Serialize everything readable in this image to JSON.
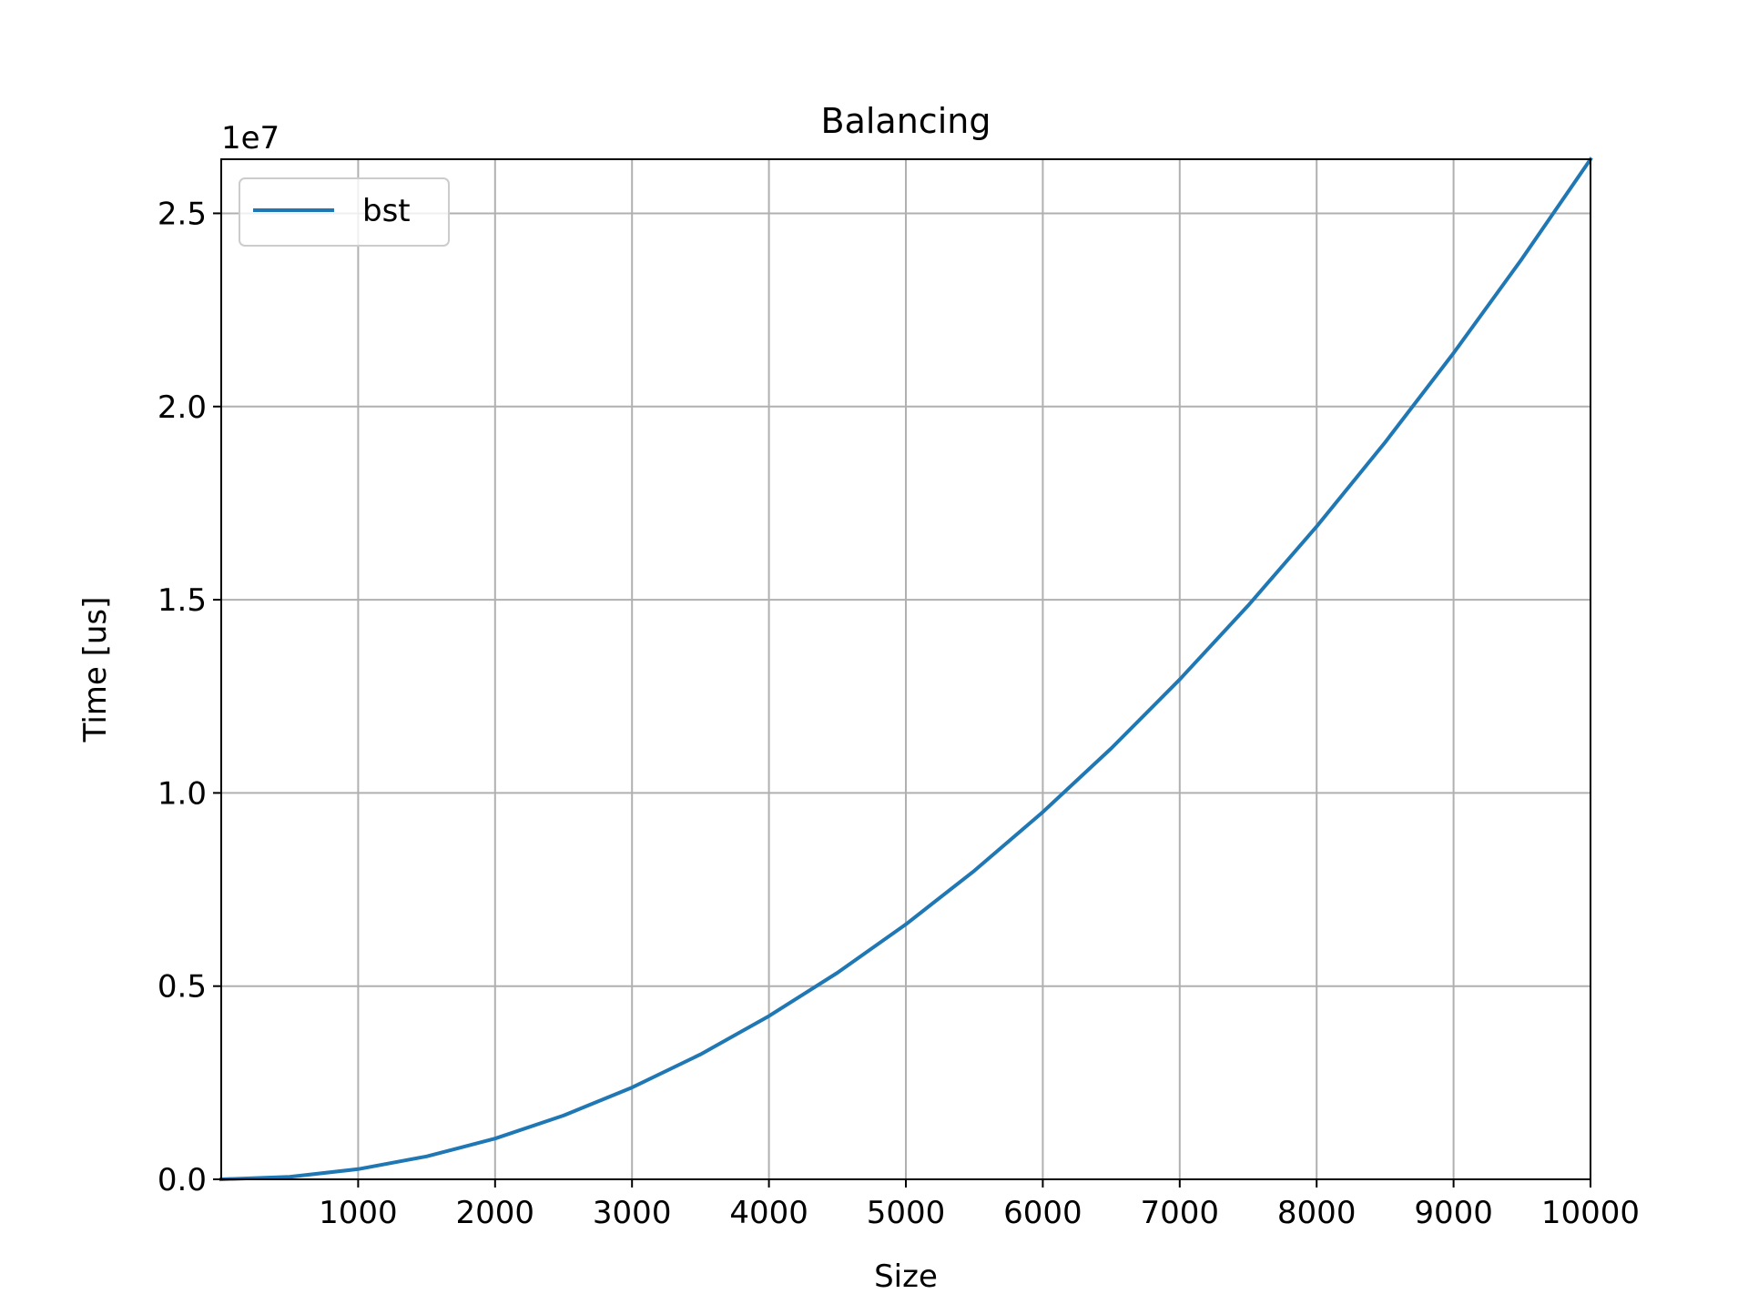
{
  "chart_data": {
    "type": "line",
    "title": "Balancing",
    "xlabel": "Size",
    "ylabel": "Time [us]",
    "y_offset_text": "1e7",
    "y_scale_factor": 10000000,
    "xlim": [
      0,
      10000
    ],
    "ylim": [
      0,
      26400000
    ],
    "x_ticks": [
      1000,
      2000,
      3000,
      4000,
      5000,
      6000,
      7000,
      8000,
      9000,
      10000
    ],
    "x_tick_labels": [
      "1000",
      "2000",
      "3000",
      "4000",
      "5000",
      "6000",
      "7000",
      "8000",
      "9000",
      "10000"
    ],
    "y_ticks": [
      0,
      5000000,
      10000000,
      15000000,
      20000000,
      25000000
    ],
    "y_tick_labels": [
      "0.0",
      "0.5",
      "1.0",
      "1.5",
      "2.0",
      "2.5"
    ],
    "grid": true,
    "legend_position": "upper-left",
    "series": [
      {
        "name": "bst",
        "color": "#1f77b4",
        "x": [
          0,
          500,
          1000,
          1500,
          2000,
          2500,
          3000,
          3500,
          4000,
          4500,
          5000,
          5500,
          6000,
          6500,
          7000,
          7500,
          8000,
          8500,
          9000,
          9500,
          10000
        ],
        "y": [
          0,
          66000,
          264000,
          594000,
          1056000,
          1650000,
          2376000,
          3234000,
          4224000,
          5346000,
          6600000,
          7986000,
          9504000,
          11154000,
          12936000,
          14850000,
          16896000,
          19074000,
          21384000,
          23826000,
          26400000
        ]
      }
    ]
  }
}
